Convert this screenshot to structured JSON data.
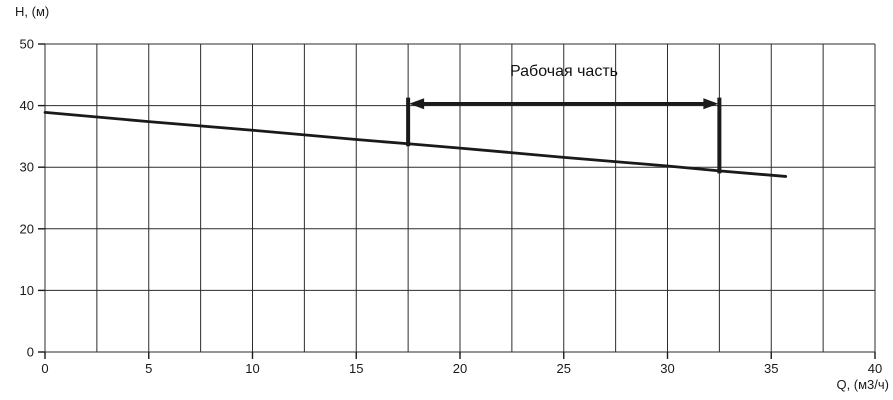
{
  "figure": {
    "background": "#ffffff",
    "ink_color": "#1a1a1a",
    "grid_color": "#2b2b2b"
  },
  "chart_data": {
    "type": "line",
    "title": "",
    "xlabel": "Q, (м3/ч)",
    "ylabel": "Н, (м)",
    "xlim": [
      0,
      40
    ],
    "ylim": [
      0,
      50
    ],
    "x_tick_step": 5,
    "x_grid_step": 2.5,
    "y_tick_step": 10,
    "y_grid_step": 10,
    "x_ticks": [
      0,
      5,
      10,
      15,
      20,
      25,
      30,
      35,
      40
    ],
    "y_ticks": [
      0,
      10,
      20,
      30,
      40,
      50
    ],
    "grid": true,
    "legend": false,
    "series": [
      {
        "name": "pump-head-curve",
        "points": [
          [
            0,
            38.9
          ],
          [
            5,
            37.4
          ],
          [
            10,
            36.0
          ],
          [
            15,
            34.5
          ],
          [
            17.5,
            33.8
          ],
          [
            20,
            33.1
          ],
          [
            25,
            31.6
          ],
          [
            30,
            30.2
          ],
          [
            32.5,
            29.4
          ],
          [
            35.7,
            28.5
          ]
        ]
      }
    ],
    "annotation": {
      "label": "Рабочая часть",
      "q_start": 17.5,
      "q_end": 32.5,
      "arrow_h": 40.3,
      "bar_top_h": 41.3,
      "bar_bottom_h_start": 33.4,
      "bar_bottom_h_end": 29.0
    }
  }
}
